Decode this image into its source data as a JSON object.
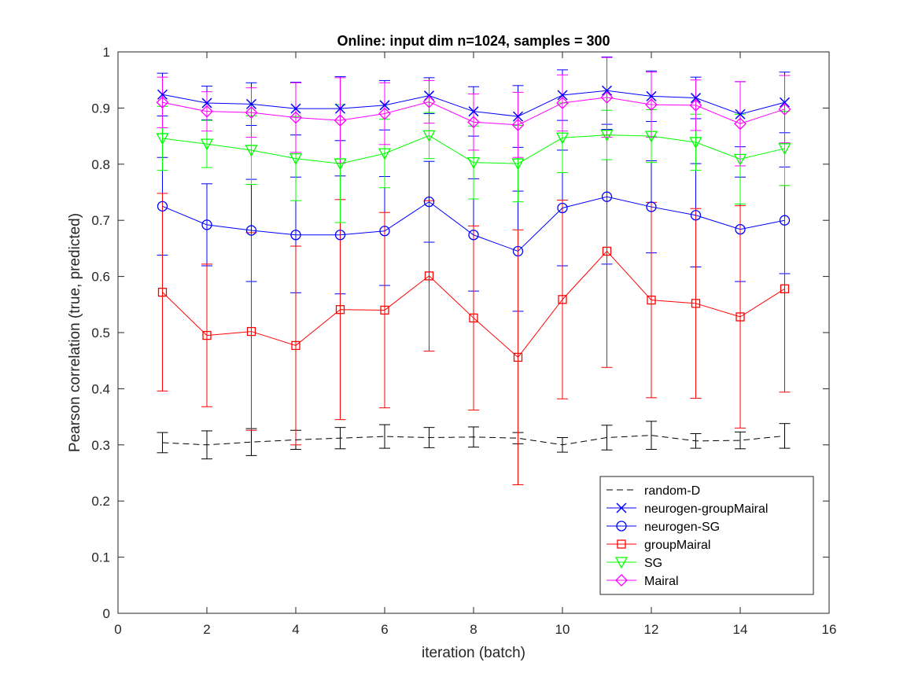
{
  "chart_data": {
    "type": "line",
    "title": "Online:  input dim n=1024, samples = 300",
    "xlabel": "iteration (batch)",
    "ylabel": "Pearson correlation (true, predicted)",
    "xlim": [
      0,
      16
    ],
    "ylim": [
      0,
      1
    ],
    "xticks": [
      0,
      2,
      4,
      6,
      8,
      10,
      12,
      14,
      16
    ],
    "yticks": [
      0,
      0.1,
      0.2,
      0.3,
      0.4,
      0.5,
      0.6,
      0.7,
      0.8,
      0.9,
      1
    ],
    "grid": false,
    "legend_position": "bottom-right",
    "x": [
      1,
      2,
      3,
      4,
      5,
      6,
      7,
      8,
      9,
      10,
      11,
      12,
      13,
      14,
      15
    ],
    "series": [
      {
        "name": "random-D",
        "color": "#000000",
        "marker": "none",
        "dash": "dashed",
        "values": [
          0.304,
          0.3,
          0.305,
          0.309,
          0.312,
          0.315,
          0.313,
          0.314,
          0.312,
          0.3,
          0.313,
          0.317,
          0.307,
          0.308,
          0.316
        ],
        "errors": [
          0.018,
          0.025,
          0.024,
          0.017,
          0.019,
          0.021,
          0.018,
          0.018,
          0.01,
          0.013,
          0.022,
          0.025,
          0.013,
          0.015,
          0.022
        ]
      },
      {
        "name": "neurogen-groupMairal",
        "color": "#0000ff",
        "marker": "x",
        "dash": "solid",
        "values": [
          0.924,
          0.909,
          0.907,
          0.899,
          0.899,
          0.905,
          0.922,
          0.894,
          0.885,
          0.923,
          0.931,
          0.921,
          0.918,
          0.889,
          0.91
        ],
        "errors": [
          0.038,
          0.03,
          0.038,
          0.047,
          0.057,
          0.044,
          0.032,
          0.044,
          0.055,
          0.045,
          0.06,
          0.045,
          0.037,
          0.058,
          0.054
        ]
      },
      {
        "name": "neurogen-SG",
        "color": "#0000ff",
        "marker": "circle",
        "dash": "solid",
        "values": [
          0.725,
          0.692,
          0.682,
          0.674,
          0.674,
          0.681,
          0.733,
          0.674,
          0.645,
          0.722,
          0.742,
          0.724,
          0.709,
          0.684,
          0.7
        ],
        "errors": [
          0.087,
          0.073,
          0.091,
          0.103,
          0.105,
          0.097,
          0.072,
          0.1,
          0.107,
          0.103,
          0.12,
          0.082,
          0.092,
          0.093,
          0.095
        ]
      },
      {
        "name": "groupMairal",
        "color": "#ff0000",
        "marker": "square",
        "dash": "solid",
        "values": [
          0.572,
          0.495,
          0.502,
          0.477,
          0.541,
          0.54,
          0.601,
          0.526,
          0.456,
          0.559,
          0.645,
          0.558,
          0.552,
          0.528,
          0.578
        ],
        "errors": [
          0.176,
          0.127,
          0.176,
          0.177,
          0.196,
          0.174,
          0.134,
          0.164,
          0.227,
          0.177,
          0.207,
          0.174,
          0.169,
          0.198,
          0.184
        ]
      },
      {
        "name": "SG",
        "color": "#00ff00",
        "marker": "triangle-down",
        "dash": "solid",
        "values": [
          0.846,
          0.836,
          0.825,
          0.81,
          0.801,
          0.819,
          0.851,
          0.803,
          0.801,
          0.847,
          0.852,
          0.85,
          0.839,
          0.809,
          0.828
        ],
        "errors": [
          0.057,
          0.042,
          0.061,
          0.075,
          0.105,
          0.061,
          0.041,
          0.065,
          0.068,
          0.062,
          0.044,
          0.047,
          0.05,
          0.08,
          0.066
        ]
      },
      {
        "name": "Mairal",
        "color": "#ff00ff",
        "marker": "diamond",
        "dash": "solid",
        "values": [
          0.91,
          0.894,
          0.892,
          0.883,
          0.878,
          0.89,
          0.911,
          0.875,
          0.87,
          0.909,
          0.919,
          0.906,
          0.905,
          0.872,
          0.898
        ],
        "errors": [
          0.045,
          0.035,
          0.044,
          0.062,
          0.076,
          0.055,
          0.038,
          0.05,
          0.058,
          0.05,
          0.071,
          0.058,
          0.045,
          0.075,
          0.06
        ]
      }
    ]
  }
}
